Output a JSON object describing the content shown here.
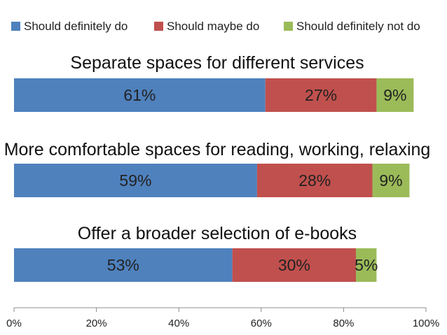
{
  "chart_data": {
    "type": "bar",
    "orientation": "horizontal",
    "stacked": true,
    "title": "",
    "xlabel": "",
    "ylabel": "",
    "xlim": [
      0,
      100
    ],
    "grid": false,
    "legend_position": "top",
    "categories": [
      "Separate spaces for different services",
      "More comfortable spaces for reading, working, relaxing",
      "Offer a broader selection of e-books"
    ],
    "series": [
      {
        "name": "Should definitely do",
        "color": "#4F81BD",
        "values": [
          61,
          59,
          53
        ],
        "labels": [
          "61%",
          "59%",
          "53%"
        ]
      },
      {
        "name": "Should maybe do",
        "color": "#C0504D",
        "values": [
          27,
          28,
          30
        ],
        "labels": [
          "27%",
          "28%",
          "30%"
        ]
      },
      {
        "name": "Should definitely not do",
        "color": "#9BBB59",
        "values": [
          9,
          9,
          5
        ],
        "labels": [
          "9%",
          "9%",
          "5%"
        ]
      }
    ],
    "x_ticks": [
      0,
      20,
      40,
      60,
      80,
      100
    ],
    "x_tick_labels": [
      "0%",
      "20%",
      "40%",
      "60%",
      "80%",
      "100%"
    ]
  }
}
